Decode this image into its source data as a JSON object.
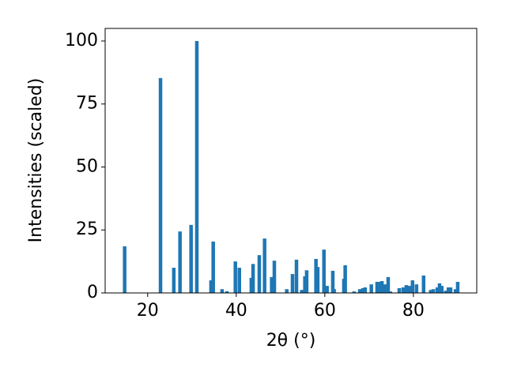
{
  "chart_data": {
    "type": "bar",
    "xlabel": "2θ (°)",
    "ylabel": "Intensities (scaled)",
    "color": "#1f77b4",
    "x": [
      14.8,
      22.9,
      25.9,
      27.3,
      29.8,
      31.1,
      34.3,
      34.8,
      36.8,
      37.9,
      39.8,
      40.7,
      43.4,
      43.8,
      45.2,
      46.4,
      48.0,
      48.6,
      51.4,
      52.7,
      53.6,
      54.8,
      55.5,
      55.9,
      58.0,
      58.4,
      59.8,
      60.5,
      61.8,
      62.1,
      64.3,
      64.6,
      66.6,
      67.9,
      68.6,
      69.1,
      70.5,
      71.8,
      72.3,
      72.9,
      73.6,
      74.3,
      74.8,
      76.8,
      77.7,
      78.4,
      79.1,
      79.8,
      80.7,
      82.3,
      83.9,
      84.5,
      85.4,
      85.9,
      86.4,
      87.3,
      87.9,
      88.4,
      89.5,
      90.0
    ],
    "values": [
      18.5,
      85.3,
      10,
      24.4,
      27,
      100,
      5,
      20.4,
      1.5,
      0.7,
      12.5,
      10,
      6,
      11.5,
      15,
      21.6,
      6.3,
      12.8,
      1.5,
      7.5,
      13.2,
      1.2,
      6.6,
      9,
      13.5,
      10.3,
      17.2,
      2.8,
      8.8,
      1.5,
      5.6,
      11,
      0.6,
      1.5,
      1.9,
      2.2,
      3.4,
      4.4,
      4.4,
      4.7,
      3.4,
      6.3,
      0.6,
      1.9,
      2.2,
      3.1,
      2.8,
      5,
      3.4,
      6.9,
      1.2,
      1.5,
      2.2,
      3.8,
      2.8,
      0.9,
      2.2,
      2.2,
      1.5,
      4.4
    ],
    "xlim": [
      10.4,
      94.3
    ],
    "ylim": [
      0,
      105
    ],
    "xticks": [
      20,
      40,
      60,
      80
    ],
    "yticks": [
      0,
      25,
      50,
      75,
      100
    ]
  }
}
